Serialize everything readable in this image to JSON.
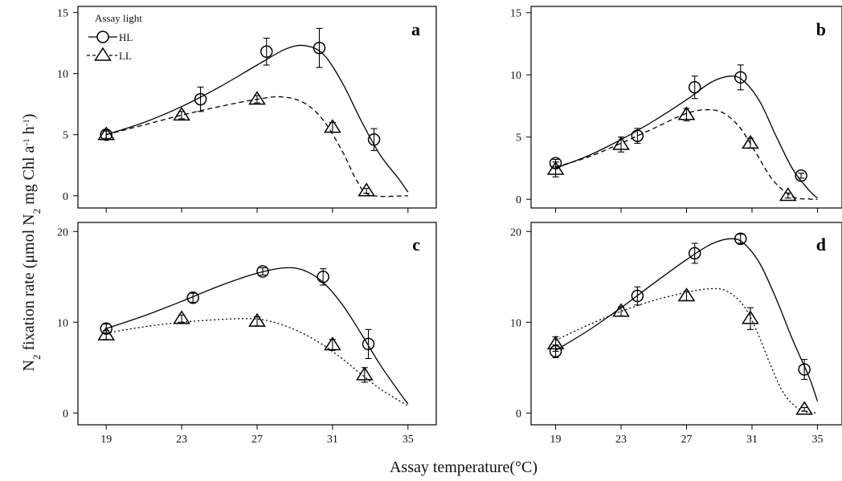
{
  "chart_data": {
    "type": "scatter",
    "ylabel": {
      "prefix": "N",
      "sub1": "2",
      "mid": " fixation rate (μmol N",
      "sub2": "2",
      "mid2": " mg Chl a",
      "sup1": "-1",
      "mid3": " h",
      "sup2": "-1",
      "suffix": ")"
    },
    "xlabel": "Assay temperature(°C)",
    "x_ticks": [
      "19",
      "23",
      "27",
      "31",
      "35"
    ],
    "xlim": [
      17.5,
      36.5
    ],
    "legend": {
      "title": "Assay light",
      "entries": [
        "HL",
        "LL"
      ]
    },
    "panels": [
      {
        "letter": "a",
        "ylim": [
          -1,
          15.5
        ],
        "y_ticks": [
          0,
          5,
          10,
          15
        ],
        "series": [
          {
            "name": "HL",
            "marker": "circle",
            "line": "solid",
            "points": [
              {
                "x": 19,
                "y": 5.0,
                "err": 0.4
              },
              {
                "x": 24,
                "y": 7.9,
                "err": 1.0
              },
              {
                "x": 27.5,
                "y": 11.8,
                "err": 1.1
              },
              {
                "x": 30.3,
                "y": 12.1,
                "err": 1.6
              },
              {
                "x": 33.2,
                "y": 4.6,
                "err": 0.9
              }
            ],
            "fit": [
              [
                19,
                5.0
              ],
              [
                21,
                6.0
              ],
              [
                23,
                7.3
              ],
              [
                25,
                8.9
              ],
              [
                27,
                10.7
              ],
              [
                28.5,
                12.0
              ],
              [
                29.5,
                12.3
              ],
              [
                30.5,
                11.6
              ],
              [
                31.5,
                9.3
              ],
              [
                32.5,
                6.2
              ],
              [
                33.5,
                3.4
              ],
              [
                34.5,
                1.4
              ],
              [
                35,
                0.3
              ]
            ]
          },
          {
            "name": "LL",
            "marker": "triangle",
            "line": "dashed",
            "points": [
              {
                "x": 19,
                "y": 5.0,
                "err": 0.3
              },
              {
                "x": 23,
                "y": 6.6,
                "err": 0.3
              },
              {
                "x": 27,
                "y": 7.9,
                "err": 0.3
              },
              {
                "x": 31,
                "y": 5.6,
                "err": 0.4
              },
              {
                "x": 32.8,
                "y": 0.4,
                "err": 0.2
              }
            ],
            "fit": [
              [
                19,
                5.0
              ],
              [
                21,
                5.8
              ],
              [
                23,
                6.6
              ],
              [
                25,
                7.3
              ],
              [
                27,
                7.9
              ],
              [
                28.3,
                8.1
              ],
              [
                29.5,
                7.6
              ],
              [
                30.5,
                6.2
              ],
              [
                31.5,
                3.7
              ],
              [
                32.3,
                1.2
              ],
              [
                33,
                0.05
              ],
              [
                35,
                0
              ]
            ]
          }
        ]
      },
      {
        "letter": "b",
        "ylim": [
          -0.7,
          15.5
        ],
        "y_ticks": [
          0,
          5,
          10,
          15
        ],
        "series": [
          {
            "name": "HL",
            "marker": "circle",
            "line": "solid",
            "points": [
              {
                "x": 19,
                "y": 2.9,
                "err": 0.3
              },
              {
                "x": 24,
                "y": 5.1,
                "err": 0.6
              },
              {
                "x": 27.5,
                "y": 9.0,
                "err": 0.9
              },
              {
                "x": 30.3,
                "y": 9.8,
                "err": 1.0
              },
              {
                "x": 34,
                "y": 1.9,
                "err": 0.2
              }
            ],
            "fit": [
              [
                19,
                2.5
              ],
              [
                21,
                3.5
              ],
              [
                23,
                4.8
              ],
              [
                25,
                6.3
              ],
              [
                27,
                8.0
              ],
              [
                28.5,
                9.4
              ],
              [
                29.7,
                9.9
              ],
              [
                30.5,
                9.5
              ],
              [
                31.5,
                7.8
              ],
              [
                32.5,
                5.0
              ],
              [
                33.5,
                2.4
              ],
              [
                34.5,
                0.7
              ],
              [
                35,
                0.1
              ]
            ]
          },
          {
            "name": "LL",
            "marker": "triangle",
            "line": "dashed",
            "points": [
              {
                "x": 19,
                "y": 2.4,
                "err": 0.6
              },
              {
                "x": 23,
                "y": 4.4,
                "err": 0.6
              },
              {
                "x": 27,
                "y": 6.8,
                "err": 0.5
              },
              {
                "x": 30.9,
                "y": 4.5,
                "err": 0.4
              },
              {
                "x": 33.2,
                "y": 0.3,
                "err": 0.2
              }
            ],
            "fit": [
              [
                19,
                2.6
              ],
              [
                21,
                3.4
              ],
              [
                23,
                4.5
              ],
              [
                25,
                5.7
              ],
              [
                27,
                6.9
              ],
              [
                28.3,
                7.2
              ],
              [
                29.3,
                6.9
              ],
              [
                30.3,
                5.7
              ],
              [
                31.3,
                3.6
              ],
              [
                32.3,
                1.5
              ],
              [
                33.5,
                0.2
              ],
              [
                34.5,
                0.02
              ],
              [
                35,
                0
              ]
            ]
          }
        ]
      },
      {
        "letter": "c",
        "ylim": [
          -1.3,
          21
        ],
        "y_ticks": [
          0,
          10,
          20
        ],
        "series": [
          {
            "name": "HL",
            "marker": "circle",
            "line": "solid",
            "points": [
              {
                "x": 19,
                "y": 9.3,
                "err": 0.5
              },
              {
                "x": 23.6,
                "y": 12.7,
                "err": 0.5
              },
              {
                "x": 27.3,
                "y": 15.6,
                "err": 0.4
              },
              {
                "x": 30.5,
                "y": 15.0,
                "err": 0.9
              },
              {
                "x": 32.9,
                "y": 7.6,
                "err": 1.6
              }
            ],
            "fit": [
              [
                19,
                9.3
              ],
              [
                21,
                10.7
              ],
              [
                23,
                12.3
              ],
              [
                25,
                14.0
              ],
              [
                27,
                15.4
              ],
              [
                28.5,
                16.0
              ],
              [
                29.5,
                15.7
              ],
              [
                30.5,
                14.4
              ],
              [
                31.5,
                12.0
              ],
              [
                32.5,
                8.8
              ],
              [
                33.5,
                5.4
              ],
              [
                34.5,
                2.4
              ],
              [
                35,
                1.0
              ]
            ]
          },
          {
            "name": "LL",
            "marker": "triangle",
            "line": "dotted",
            "points": [
              {
                "x": 19,
                "y": 8.6,
                "err": 0.5
              },
              {
                "x": 23,
                "y": 10.4,
                "err": 0.4
              },
              {
                "x": 27,
                "y": 10.1,
                "err": 0.5
              },
              {
                "x": 31,
                "y": 7.5,
                "err": 0.6
              },
              {
                "x": 32.7,
                "y": 4.2,
                "err": 0.8
              }
            ],
            "fit": [
              [
                19,
                8.8
              ],
              [
                21,
                9.5
              ],
              [
                23,
                10.0
              ],
              [
                25,
                10.3
              ],
              [
                26.5,
                10.4
              ],
              [
                27.5,
                10.2
              ],
              [
                28.5,
                9.6
              ],
              [
                29.5,
                8.7
              ],
              [
                30.5,
                7.5
              ],
              [
                31.5,
                6.0
              ],
              [
                32.5,
                4.3
              ],
              [
                33.5,
                2.7
              ],
              [
                34.5,
                1.4
              ],
              [
                35,
                0.8
              ]
            ]
          }
        ]
      },
      {
        "letter": "d",
        "ylim": [
          -1.3,
          21
        ],
        "y_ticks": [
          0,
          10,
          20
        ],
        "series": [
          {
            "name": "HL",
            "marker": "circle",
            "line": "solid",
            "points": [
              {
                "x": 19,
                "y": 6.8,
                "err": 0.7
              },
              {
                "x": 24,
                "y": 12.9,
                "err": 1.0
              },
              {
                "x": 27.5,
                "y": 17.6,
                "err": 1.1
              },
              {
                "x": 30.3,
                "y": 19.2,
                "err": 0.5
              },
              {
                "x": 34.2,
                "y": 4.8,
                "err": 1.1
              }
            ],
            "fit": [
              [
                19,
                6.9
              ],
              [
                21,
                9.1
              ],
              [
                23,
                11.6
              ],
              [
                25,
                14.3
              ],
              [
                27,
                16.9
              ],
              [
                28.5,
                18.6
              ],
              [
                29.7,
                19.2
              ],
              [
                30.5,
                18.7
              ],
              [
                31.5,
                16.4
              ],
              [
                32.5,
                12.5
              ],
              [
                33.5,
                8.0
              ],
              [
                34.5,
                3.9
              ],
              [
                35,
                1.3
              ]
            ]
          },
          {
            "name": "LL",
            "marker": "triangle",
            "line": "dotted",
            "points": [
              {
                "x": 19,
                "y": 7.6,
                "err": 0.8
              },
              {
                "x": 23,
                "y": 11.2,
                "err": 0.5
              },
              {
                "x": 27,
                "y": 12.9,
                "err": 0.5
              },
              {
                "x": 30.9,
                "y": 10.4,
                "err": 1.2
              },
              {
                "x": 34.2,
                "y": 0.4,
                "err": 0.2
              }
            ],
            "fit": [
              [
                19,
                8.0
              ],
              [
                21,
                9.7
              ],
              [
                23,
                11.2
              ],
              [
                25,
                12.4
              ],
              [
                27,
                13.3
              ],
              [
                28.5,
                13.7
              ],
              [
                29.5,
                13.4
              ],
              [
                30.5,
                11.8
              ],
              [
                31.3,
                9.0
              ],
              [
                32.2,
                5.0
              ],
              [
                33,
                2.0
              ],
              [
                34,
                0.3
              ],
              [
                35,
                0.02
              ]
            ]
          }
        ]
      }
    ]
  }
}
